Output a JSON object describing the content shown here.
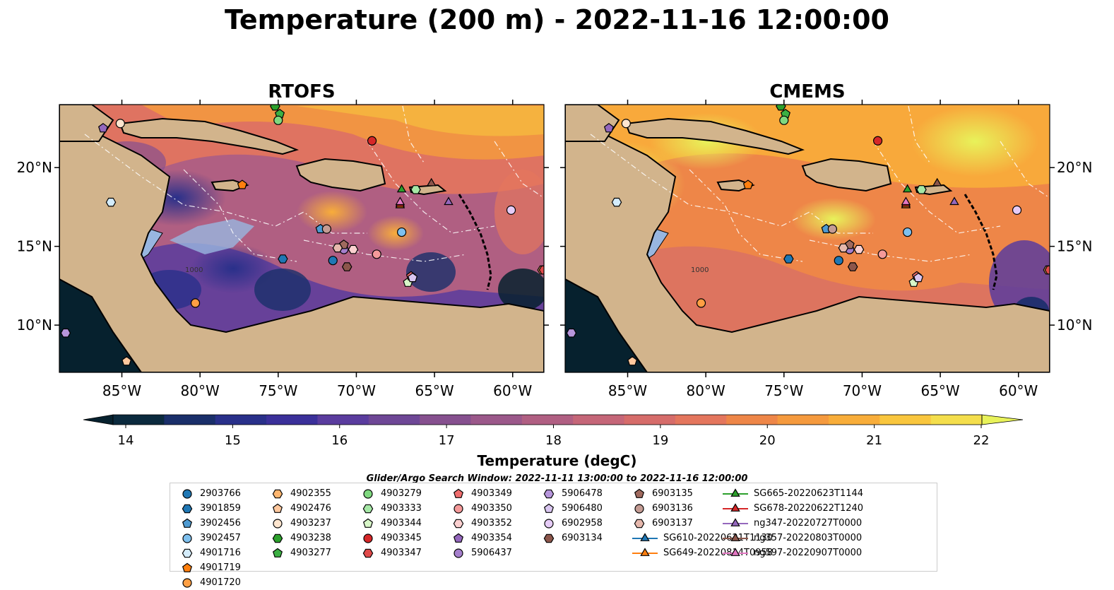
{
  "figure": {
    "title": "Temperature (200 m) - 2022-11-16 12:00:00",
    "panels": [
      {
        "title": "RTOFS"
      },
      {
        "title": "CMEMS"
      }
    ],
    "x_ticks": [
      "85°W",
      "80°W",
      "75°W",
      "70°W",
      "65°W",
      "60°W"
    ],
    "y_ticks": [
      "20°N",
      "15°N",
      "10°N"
    ],
    "colorbar": {
      "label": "Temperature (degC)",
      "ticks": [
        "14",
        "15",
        "16",
        "17",
        "18",
        "19",
        "20",
        "21",
        "22"
      ],
      "min": 14,
      "max": 22,
      "colors": [
        "#06212e",
        "#0b2a3e",
        "#1a2f6a",
        "#29308a",
        "#3b309a",
        "#5a3c9e",
        "#6e4796",
        "#86508f",
        "#9b588a",
        "#b05f82",
        "#c56678",
        "#d66c6a",
        "#e4765d",
        "#ee8648",
        "#f59a3e",
        "#f8ad3a",
        "#f9c63e",
        "#f4de4c",
        "#e8f25a"
      ],
      "extend": "both"
    },
    "search_window": "Glider/Argo Search Window: 2022-11-11 13:00:00 to 2022-11-16 12:00:00",
    "land_color": "#d2b48c",
    "shelf_color": "#98b6e0",
    "contour_label": "1000"
  },
  "chart_data": {
    "type": "map",
    "xlim": [
      -89,
      -58
    ],
    "ylim": [
      7,
      24
    ],
    "legend": [
      {
        "id": "2903766",
        "marker": "circle",
        "color": "#1f77b4",
        "lon": -71.5,
        "lat": 14.1
      },
      {
        "id": "3901859",
        "marker": "hexagon",
        "color": "#1f77b4",
        "lon": -74.7,
        "lat": 14.2
      },
      {
        "id": "3902456",
        "marker": "pentagon",
        "color": "#4e9ad1",
        "lon": -72.3,
        "lat": 16.1
      },
      {
        "id": "3902457",
        "marker": "circle",
        "color": "#7ec0ee",
        "lon": -67.1,
        "lat": 15.9
      },
      {
        "id": "4901716",
        "marker": "hexagon",
        "color": "#d4ecfb",
        "lon": -85.7,
        "lat": 17.8
      },
      {
        "id": "4901719",
        "marker": "pentagon",
        "color": "#ff7f0e",
        "lon": -77.3,
        "lat": 18.9
      },
      {
        "id": "4901720",
        "marker": "circle",
        "color": "#ff9f43",
        "lon": -80.3,
        "lat": 11.4
      },
      {
        "id": "4902355",
        "marker": "hexagon",
        "color": "#ffb66f",
        "lon": -58.1,
        "lat": 13.5
      },
      {
        "id": "4902476",
        "marker": "pentagon",
        "color": "#ffc89e",
        "lon": -84.7,
        "lat": 7.7
      },
      {
        "id": "4903237",
        "marker": "circle",
        "color": "#ffe6cf",
        "lon": -85.1,
        "lat": 22.8
      },
      {
        "id": "4903238",
        "marker": "hexagon",
        "color": "#2ca02c",
        "lon": -75.2,
        "lat": 23.9
      },
      {
        "id": "4903277",
        "marker": "pentagon",
        "color": "#3cb043",
        "lon": -74.9,
        "lat": 23.4
      },
      {
        "id": "4903279",
        "marker": "circle",
        "color": "#7fd87f",
        "lon": -75.0,
        "lat": 23.0
      },
      {
        "id": "4903333",
        "marker": "hexagon",
        "color": "#a6e8a6",
        "lon": -66.2,
        "lat": 18.6
      },
      {
        "id": "4903344",
        "marker": "pentagon",
        "color": "#d8f7c8",
        "lon": -66.7,
        "lat": 12.7
      },
      {
        "id": "4903345",
        "marker": "circle",
        "color": "#d62728",
        "lon": -69.0,
        "lat": 21.7
      },
      {
        "id": "4903347",
        "marker": "hexagon",
        "color": "#e04a4a",
        "lon": -58.0,
        "lat": 13.5
      },
      {
        "id": "4903349",
        "marker": "pentagon",
        "color": "#f06d6d",
        "lon": -66.5,
        "lat": 13.1
      },
      {
        "id": "4903350",
        "marker": "circle",
        "color": "#f59a9a",
        "lon": -68.7,
        "lat": 14.5
      },
      {
        "id": "4903352",
        "marker": "hexagon",
        "color": "#fbd0d0",
        "lon": -70.2,
        "lat": 14.8
      },
      {
        "id": "4903354",
        "marker": "pentagon",
        "color": "#9467bd",
        "lon": -86.2,
        "lat": 22.5
      },
      {
        "id": "5906437",
        "marker": "circle",
        "color": "#a57fcc",
        "lon": -70.8,
        "lat": 14.8
      },
      {
        "id": "5906478",
        "marker": "hexagon",
        "color": "#b796dc",
        "lon": -88.6,
        "lat": 9.5
      },
      {
        "id": "5906480",
        "marker": "pentagon",
        "color": "#d9c6f0",
        "lon": -66.4,
        "lat": 13.0
      },
      {
        "id": "6902958",
        "marker": "circle",
        "color": "#e6ccf7",
        "lon": -60.1,
        "lat": 17.3
      },
      {
        "id": "6903134",
        "marker": "hexagon",
        "color": "#8c564b",
        "lon": -70.6,
        "lat": 13.7
      },
      {
        "id": "6903135",
        "marker": "pentagon",
        "color": "#a06a5e",
        "lon": -70.8,
        "lat": 15.1
      },
      {
        "id": "6903136",
        "marker": "circle",
        "color": "#c49c94",
        "lon": -71.9,
        "lat": 16.1
      },
      {
        "id": "6903137",
        "marker": "hexagon",
        "color": "#e6b8ad",
        "lon": -71.2,
        "lat": 14.9
      },
      {
        "id": "SG610-20220621T1130",
        "marker": "triangle",
        "color": "#1f77b4",
        "line": true,
        "lon": -67.2,
        "lat": 17.6
      },
      {
        "id": "SG649-20220814T0958",
        "marker": "triangle",
        "color": "#ff7f0e",
        "line": true,
        "lon": -67.2,
        "lat": 17.6
      },
      {
        "id": "SG665-20220623T1144",
        "marker": "triangle",
        "color": "#2ca02c",
        "line": true,
        "lon": -67.1,
        "lat": 18.6
      },
      {
        "id": "SG678-20220622T1240",
        "marker": "triangle",
        "color": "#d62728",
        "line": true,
        "lon": -67.2,
        "lat": 17.7
      },
      {
        "id": "ng347-20220727T0000",
        "marker": "triangle",
        "color": "#9467bd",
        "line": true,
        "lon": -64.1,
        "lat": 17.8
      },
      {
        "id": "ng357-20220803T0000",
        "marker": "triangle",
        "color": "#8c564b",
        "line": true,
        "lon": -65.2,
        "lat": 19.0
      },
      {
        "id": "ng597-20220907T0000",
        "marker": "triangle",
        "color": "#e377c2",
        "line": true,
        "lon": -67.2,
        "lat": 17.8
      }
    ]
  }
}
